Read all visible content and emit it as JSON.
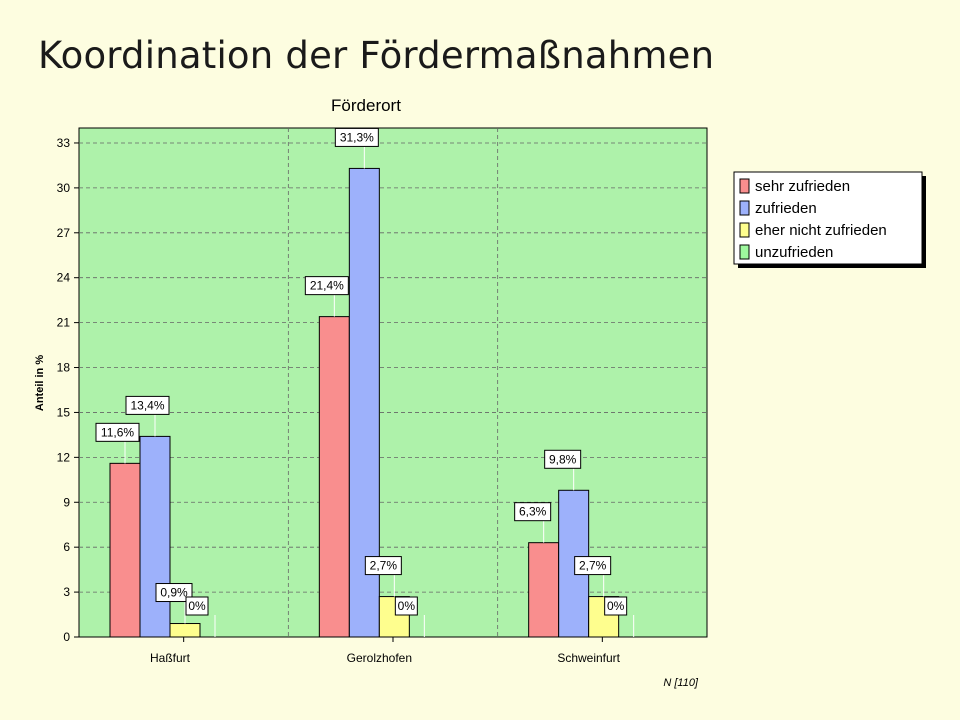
{
  "slide": {
    "title": "Koordination der Fördermaßnahmen"
  },
  "colors": {
    "background": "#fdfde0",
    "plot_background": "#aef2aa",
    "series": [
      "#f98e8e",
      "#9db1fb",
      "#fefe8e",
      "#9ef79e"
    ]
  },
  "chart_data": {
    "type": "bar",
    "title": "Förderort",
    "ylabel": "Anteil in %",
    "xlabel": "",
    "footnote": "N [110]",
    "categories": [
      "Haßfurt",
      "Gerolzhofen",
      "Schweinfurt"
    ],
    "ylim": [
      0,
      34
    ],
    "yticks": [
      0,
      3,
      6,
      9,
      12,
      15,
      18,
      21,
      24,
      27,
      30,
      33
    ],
    "grid": true,
    "legend_position": "right",
    "series": [
      {
        "name": "sehr zufrieden",
        "values": [
          11.6,
          21.4,
          6.3
        ],
        "labels": [
          "11,6%",
          "21,4%",
          "6,3%"
        ]
      },
      {
        "name": "zufrieden",
        "values": [
          13.4,
          31.3,
          9.8
        ],
        "labels": [
          "13,4%",
          "31,3%",
          "9,8%"
        ]
      },
      {
        "name": "eher nicht zufrieden",
        "values": [
          0.9,
          2.7,
          2.7
        ],
        "labels": [
          "0,9%",
          "2,7%",
          "2,7%"
        ]
      },
      {
        "name": "unzufrieden",
        "values": [
          0,
          0,
          0
        ],
        "labels": [
          "0%",
          "0%",
          "0%"
        ]
      }
    ]
  }
}
